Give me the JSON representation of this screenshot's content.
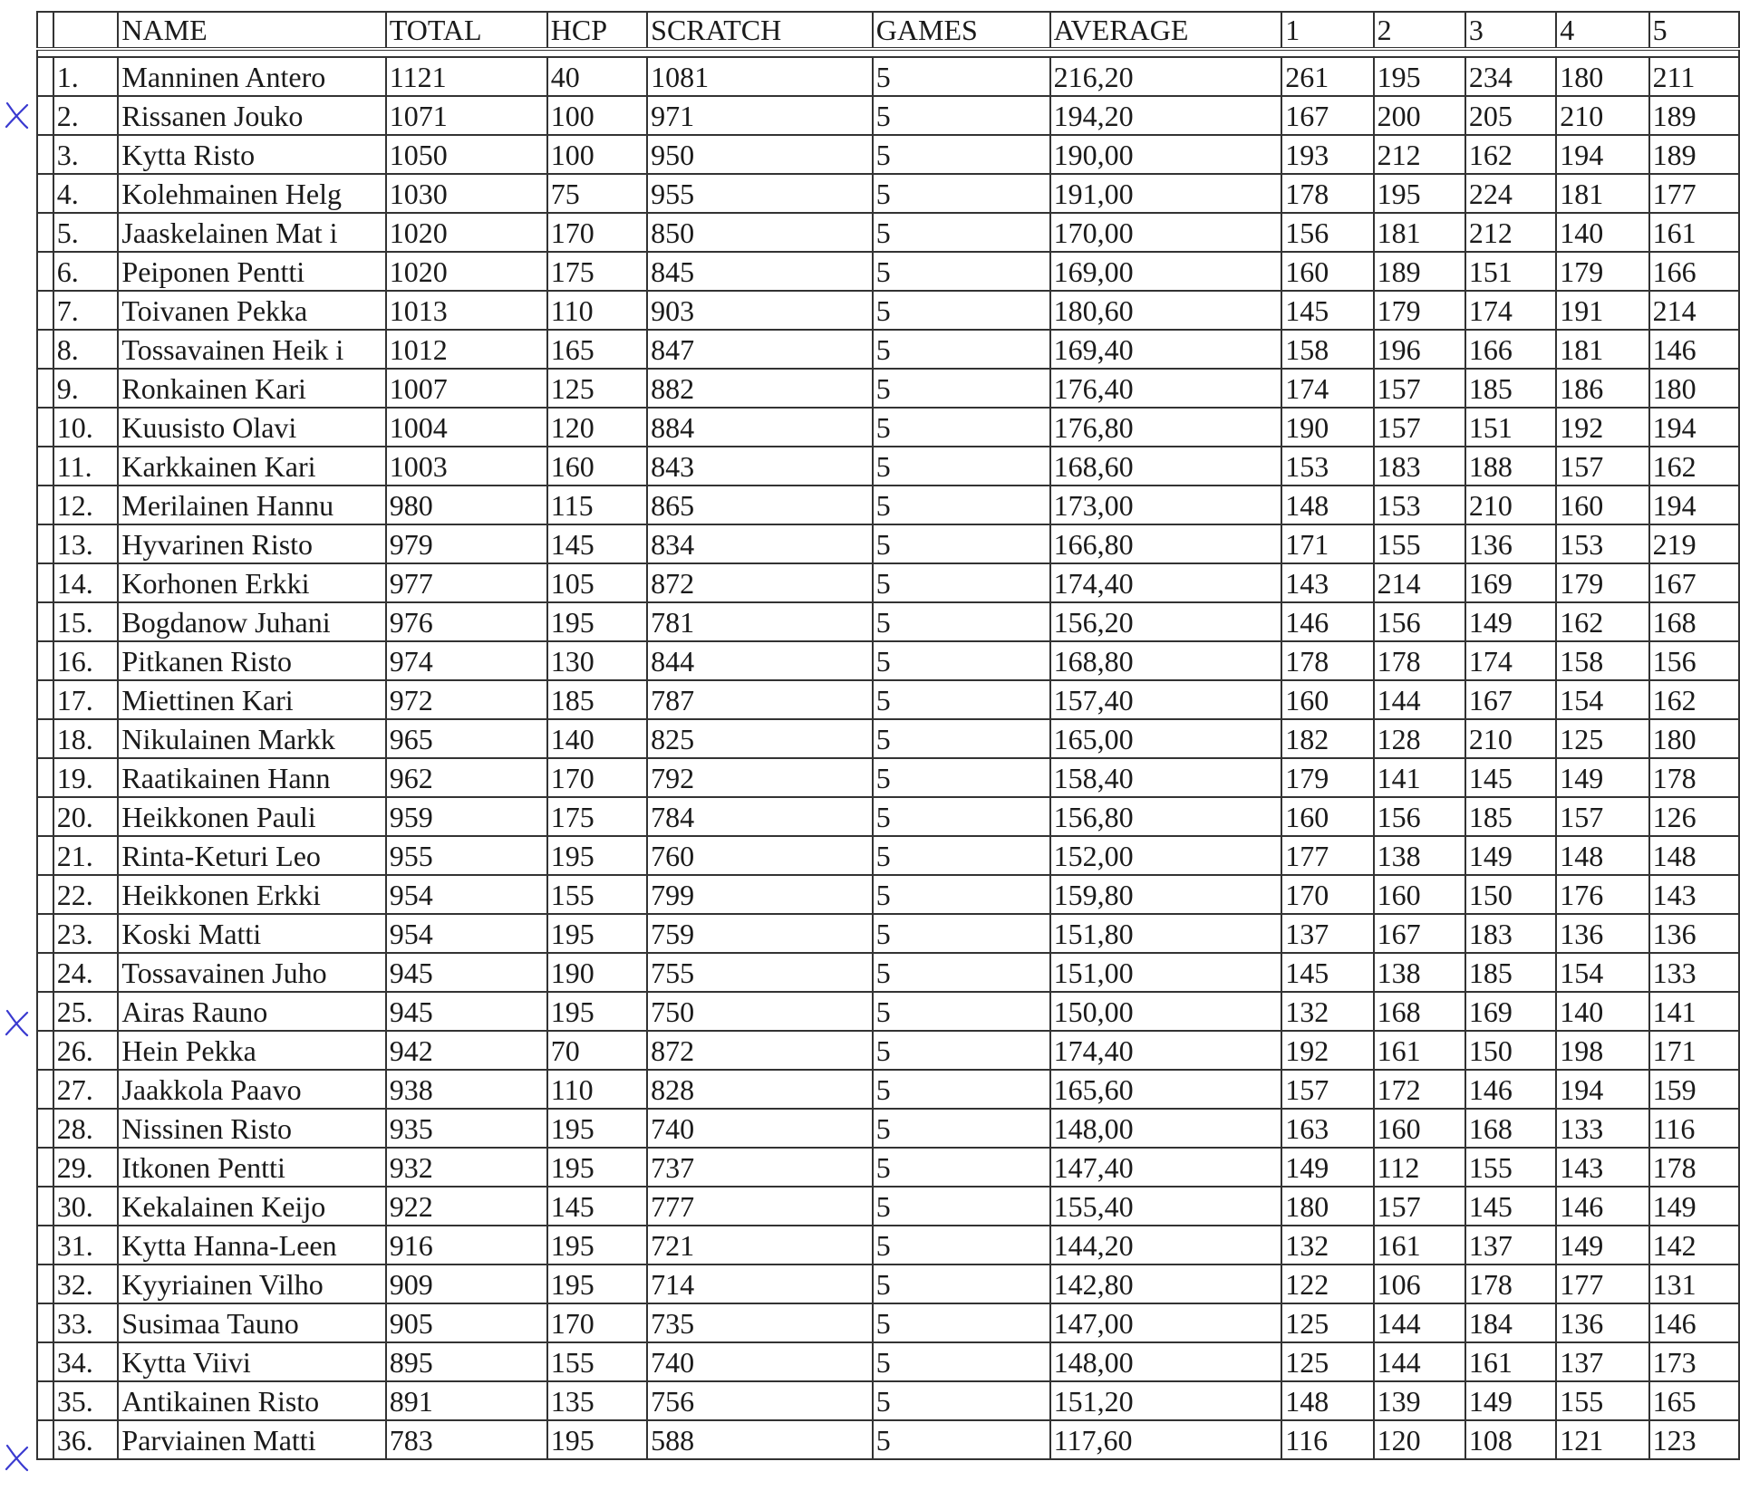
{
  "headers": [
    "",
    "NAME",
    "TOTAL",
    "HCP",
    "SCRATCH",
    "GAMES",
    "AVERAGE",
    "1",
    "2",
    "3",
    "4",
    "5"
  ],
  "mark_color": "#3a3ad0",
  "rows": [
    {
      "rank": "1.",
      "name": "Manninen Antero",
      "total": "1121",
      "hcp": "40",
      "scratch": "1081",
      "games": "5",
      "avg": "216,20",
      "g": [
        "261",
        "195",
        "234",
        "180",
        "211"
      ]
    },
    {
      "rank": "2.",
      "name": "Rissanen Jouko",
      "total": "1071",
      "hcp": "100",
      "scratch": "971",
      "games": "5",
      "avg": "194,20",
      "g": [
        "167",
        "200",
        "205",
        "210",
        "189"
      ],
      "mark": true
    },
    {
      "rank": "3.",
      "name": "Kytta Risto",
      "total": "1050",
      "hcp": "100",
      "scratch": "950",
      "games": "5",
      "avg": "190,00",
      "g": [
        "193",
        "212",
        "162",
        "194",
        "189"
      ]
    },
    {
      "rank": "4.",
      "name": "Kolehmainen Helg",
      "total": "1030",
      "hcp": "75",
      "scratch": "955",
      "games": "5",
      "avg": "191,00",
      "g": [
        "178",
        "195",
        "224",
        "181",
        "177"
      ]
    },
    {
      "rank": "5.",
      "name": "Jaaskelainen Mat i",
      "total": "1020",
      "hcp": "170",
      "scratch": "850",
      "games": "5",
      "avg": "170,00",
      "g": [
        "156",
        "181",
        "212",
        "140",
        "161"
      ]
    },
    {
      "rank": "6.",
      "name": "Peiponen Pentti",
      "total": "1020",
      "hcp": "175",
      "scratch": "845",
      "games": "5",
      "avg": "169,00",
      "g": [
        "160",
        "189",
        "151",
        "179",
        "166"
      ]
    },
    {
      "rank": "7.",
      "name": "Toivanen Pekka",
      "total": "1013",
      "hcp": "110",
      "scratch": "903",
      "games": "5",
      "avg": "180,60",
      "g": [
        "145",
        "179",
        "174",
        "191",
        "214"
      ]
    },
    {
      "rank": "8.",
      "name": "Tossavainen Heik i",
      "total": "1012",
      "hcp": "165",
      "scratch": "847",
      "games": "5",
      "avg": "169,40",
      "g": [
        "158",
        "196",
        "166",
        "181",
        "146"
      ]
    },
    {
      "rank": "9.",
      "name": "Ronkainen Kari",
      "total": "1007",
      "hcp": "125",
      "scratch": "882",
      "games": "5",
      "avg": "176,40",
      "g": [
        "174",
        "157",
        "185",
        "186",
        "180"
      ]
    },
    {
      "rank": "10.",
      "name": "Kuusisto Olavi",
      "total": "1004",
      "hcp": "120",
      "scratch": "884",
      "games": "5",
      "avg": "176,80",
      "g": [
        "190",
        "157",
        "151",
        "192",
        "194"
      ]
    },
    {
      "rank": "11.",
      "name": "Karkkainen Kari",
      "total": "1003",
      "hcp": "160",
      "scratch": "843",
      "games": "5",
      "avg": "168,60",
      "g": [
        "153",
        "183",
        "188",
        "157",
        "162"
      ]
    },
    {
      "rank": "12.",
      "name": "Merilainen Hannu",
      "total": "980",
      "hcp": "115",
      "scratch": "865",
      "games": "5",
      "avg": "173,00",
      "g": [
        "148",
        "153",
        "210",
        "160",
        "194"
      ]
    },
    {
      "rank": "13.",
      "name": "Hyvarinen Risto",
      "total": "979",
      "hcp": "145",
      "scratch": "834",
      "games": "5",
      "avg": "166,80",
      "g": [
        "171",
        "155",
        "136",
        "153",
        "219"
      ]
    },
    {
      "rank": "14.",
      "name": "Korhonen Erkki",
      "total": "977",
      "hcp": "105",
      "scratch": "872",
      "games": "5",
      "avg": "174,40",
      "g": [
        "143",
        "214",
        "169",
        "179",
        "167"
      ]
    },
    {
      "rank": "15.",
      "name": "Bogdanow Juhani",
      "total": "976",
      "hcp": "195",
      "scratch": "781",
      "games": "5",
      "avg": "156,20",
      "g": [
        "146",
        "156",
        "149",
        "162",
        "168"
      ]
    },
    {
      "rank": "16.",
      "name": "Pitkanen Risto",
      "total": "974",
      "hcp": "130",
      "scratch": "844",
      "games": "5",
      "avg": "168,80",
      "g": [
        "178",
        "178",
        "174",
        "158",
        "156"
      ]
    },
    {
      "rank": "17.",
      "name": "Miettinen Kari",
      "total": "972",
      "hcp": "185",
      "scratch": "787",
      "games": "5",
      "avg": "157,40",
      "g": [
        "160",
        "144",
        "167",
        "154",
        "162"
      ]
    },
    {
      "rank": "18.",
      "name": "Nikulainen Markk",
      "total": "965",
      "hcp": "140",
      "scratch": "825",
      "games": "5",
      "avg": "165,00",
      "g": [
        "182",
        "128",
        "210",
        "125",
        "180"
      ]
    },
    {
      "rank": "19.",
      "name": "Raatikainen Hann",
      "total": "962",
      "hcp": "170",
      "scratch": "792",
      "games": "5",
      "avg": "158,40",
      "g": [
        "179",
        "141",
        "145",
        "149",
        "178"
      ]
    },
    {
      "rank": "20.",
      "name": "Heikkonen Pauli",
      "total": "959",
      "hcp": "175",
      "scratch": "784",
      "games": "5",
      "avg": "156,80",
      "g": [
        "160",
        "156",
        "185",
        "157",
        "126"
      ]
    },
    {
      "rank": "21.",
      "name": "Rinta-Keturi Leo",
      "total": "955",
      "hcp": "195",
      "scratch": "760",
      "games": "5",
      "avg": "152,00",
      "g": [
        "177",
        "138",
        "149",
        "148",
        "148"
      ]
    },
    {
      "rank": "22.",
      "name": "Heikkonen Erkki",
      "total": "954",
      "hcp": "155",
      "scratch": "799",
      "games": "5",
      "avg": "159,80",
      "g": [
        "170",
        "160",
        "150",
        "176",
        "143"
      ]
    },
    {
      "rank": "23.",
      "name": "Koski Matti",
      "total": "954",
      "hcp": "195",
      "scratch": "759",
      "games": "5",
      "avg": "151,80",
      "g": [
        "137",
        "167",
        "183",
        "136",
        "136"
      ]
    },
    {
      "rank": "24.",
      "name": "Tossavainen Juho",
      "total": "945",
      "hcp": "190",
      "scratch": "755",
      "games": "5",
      "avg": "151,00",
      "g": [
        "145",
        "138",
        "185",
        "154",
        "133"
      ]
    },
    {
      "rank": "25.",
      "name": "Airas Rauno",
      "total": "945",
      "hcp": "195",
      "scratch": "750",
      "games": "5",
      "avg": "150,00",
      "g": [
        "132",
        "168",
        "169",
        "140",
        "141"
      ],
      "mark": true
    },
    {
      "rank": "26.",
      "name": "Hein Pekka",
      "total": "942",
      "hcp": "70",
      "scratch": "872",
      "games": "5",
      "avg": "174,40",
      "g": [
        "192",
        "161",
        "150",
        "198",
        "171"
      ]
    },
    {
      "rank": "27.",
      "name": "Jaakkola Paavo",
      "total": "938",
      "hcp": "110",
      "scratch": "828",
      "games": "5",
      "avg": "165,60",
      "g": [
        "157",
        "172",
        "146",
        "194",
        "159"
      ]
    },
    {
      "rank": "28.",
      "name": "Nissinen Risto",
      "total": "935",
      "hcp": "195",
      "scratch": "740",
      "games": "5",
      "avg": "148,00",
      "g": [
        "163",
        "160",
        "168",
        "133",
        "116"
      ]
    },
    {
      "rank": "29.",
      "name": "Itkonen Pentti",
      "total": "932",
      "hcp": "195",
      "scratch": "737",
      "games": "5",
      "avg": "147,40",
      "g": [
        "149",
        "112",
        "155",
        "143",
        "178"
      ]
    },
    {
      "rank": "30.",
      "name": "Kekalainen Keijo",
      "total": "922",
      "hcp": "145",
      "scratch": "777",
      "games": "5",
      "avg": "155,40",
      "g": [
        "180",
        "157",
        "145",
        "146",
        "149"
      ]
    },
    {
      "rank": "31.",
      "name": "Kytta Hanna-Leen",
      "total": "916",
      "hcp": "195",
      "scratch": "721",
      "games": "5",
      "avg": "144,20",
      "g": [
        "132",
        "161",
        "137",
        "149",
        "142"
      ]
    },
    {
      "rank": "32.",
      "name": "Kyyriainen Vilho",
      "total": "909",
      "hcp": "195",
      "scratch": "714",
      "games": "5",
      "avg": "142,80",
      "g": [
        "122",
        "106",
        "178",
        "177",
        "131"
      ]
    },
    {
      "rank": "33.",
      "name": "Susimaa Tauno",
      "total": "905",
      "hcp": "170",
      "scratch": "735",
      "games": "5",
      "avg": "147,00",
      "g": [
        "125",
        "144",
        "184",
        "136",
        "146"
      ]
    },
    {
      "rank": "34.",
      "name": "Kytta Viivi",
      "total": "895",
      "hcp": "155",
      "scratch": "740",
      "games": "5",
      "avg": "148,00",
      "g": [
        "125",
        "144",
        "161",
        "137",
        "173"
      ]
    },
    {
      "rank": "35.",
      "name": "Antikainen Risto",
      "total": "891",
      "hcp": "135",
      "scratch": "756",
      "games": "5",
      "avg": "151,20",
      "g": [
        "148",
        "139",
        "149",
        "155",
        "165"
      ]
    },
    {
      "rank": "36.",
      "name": "Parviainen Matti",
      "total": "783",
      "hcp": "195",
      "scratch": "588",
      "games": "5",
      "avg": "117,60",
      "g": [
        "116",
        "120",
        "108",
        "121",
        "123"
      ],
      "mark": true
    }
  ]
}
